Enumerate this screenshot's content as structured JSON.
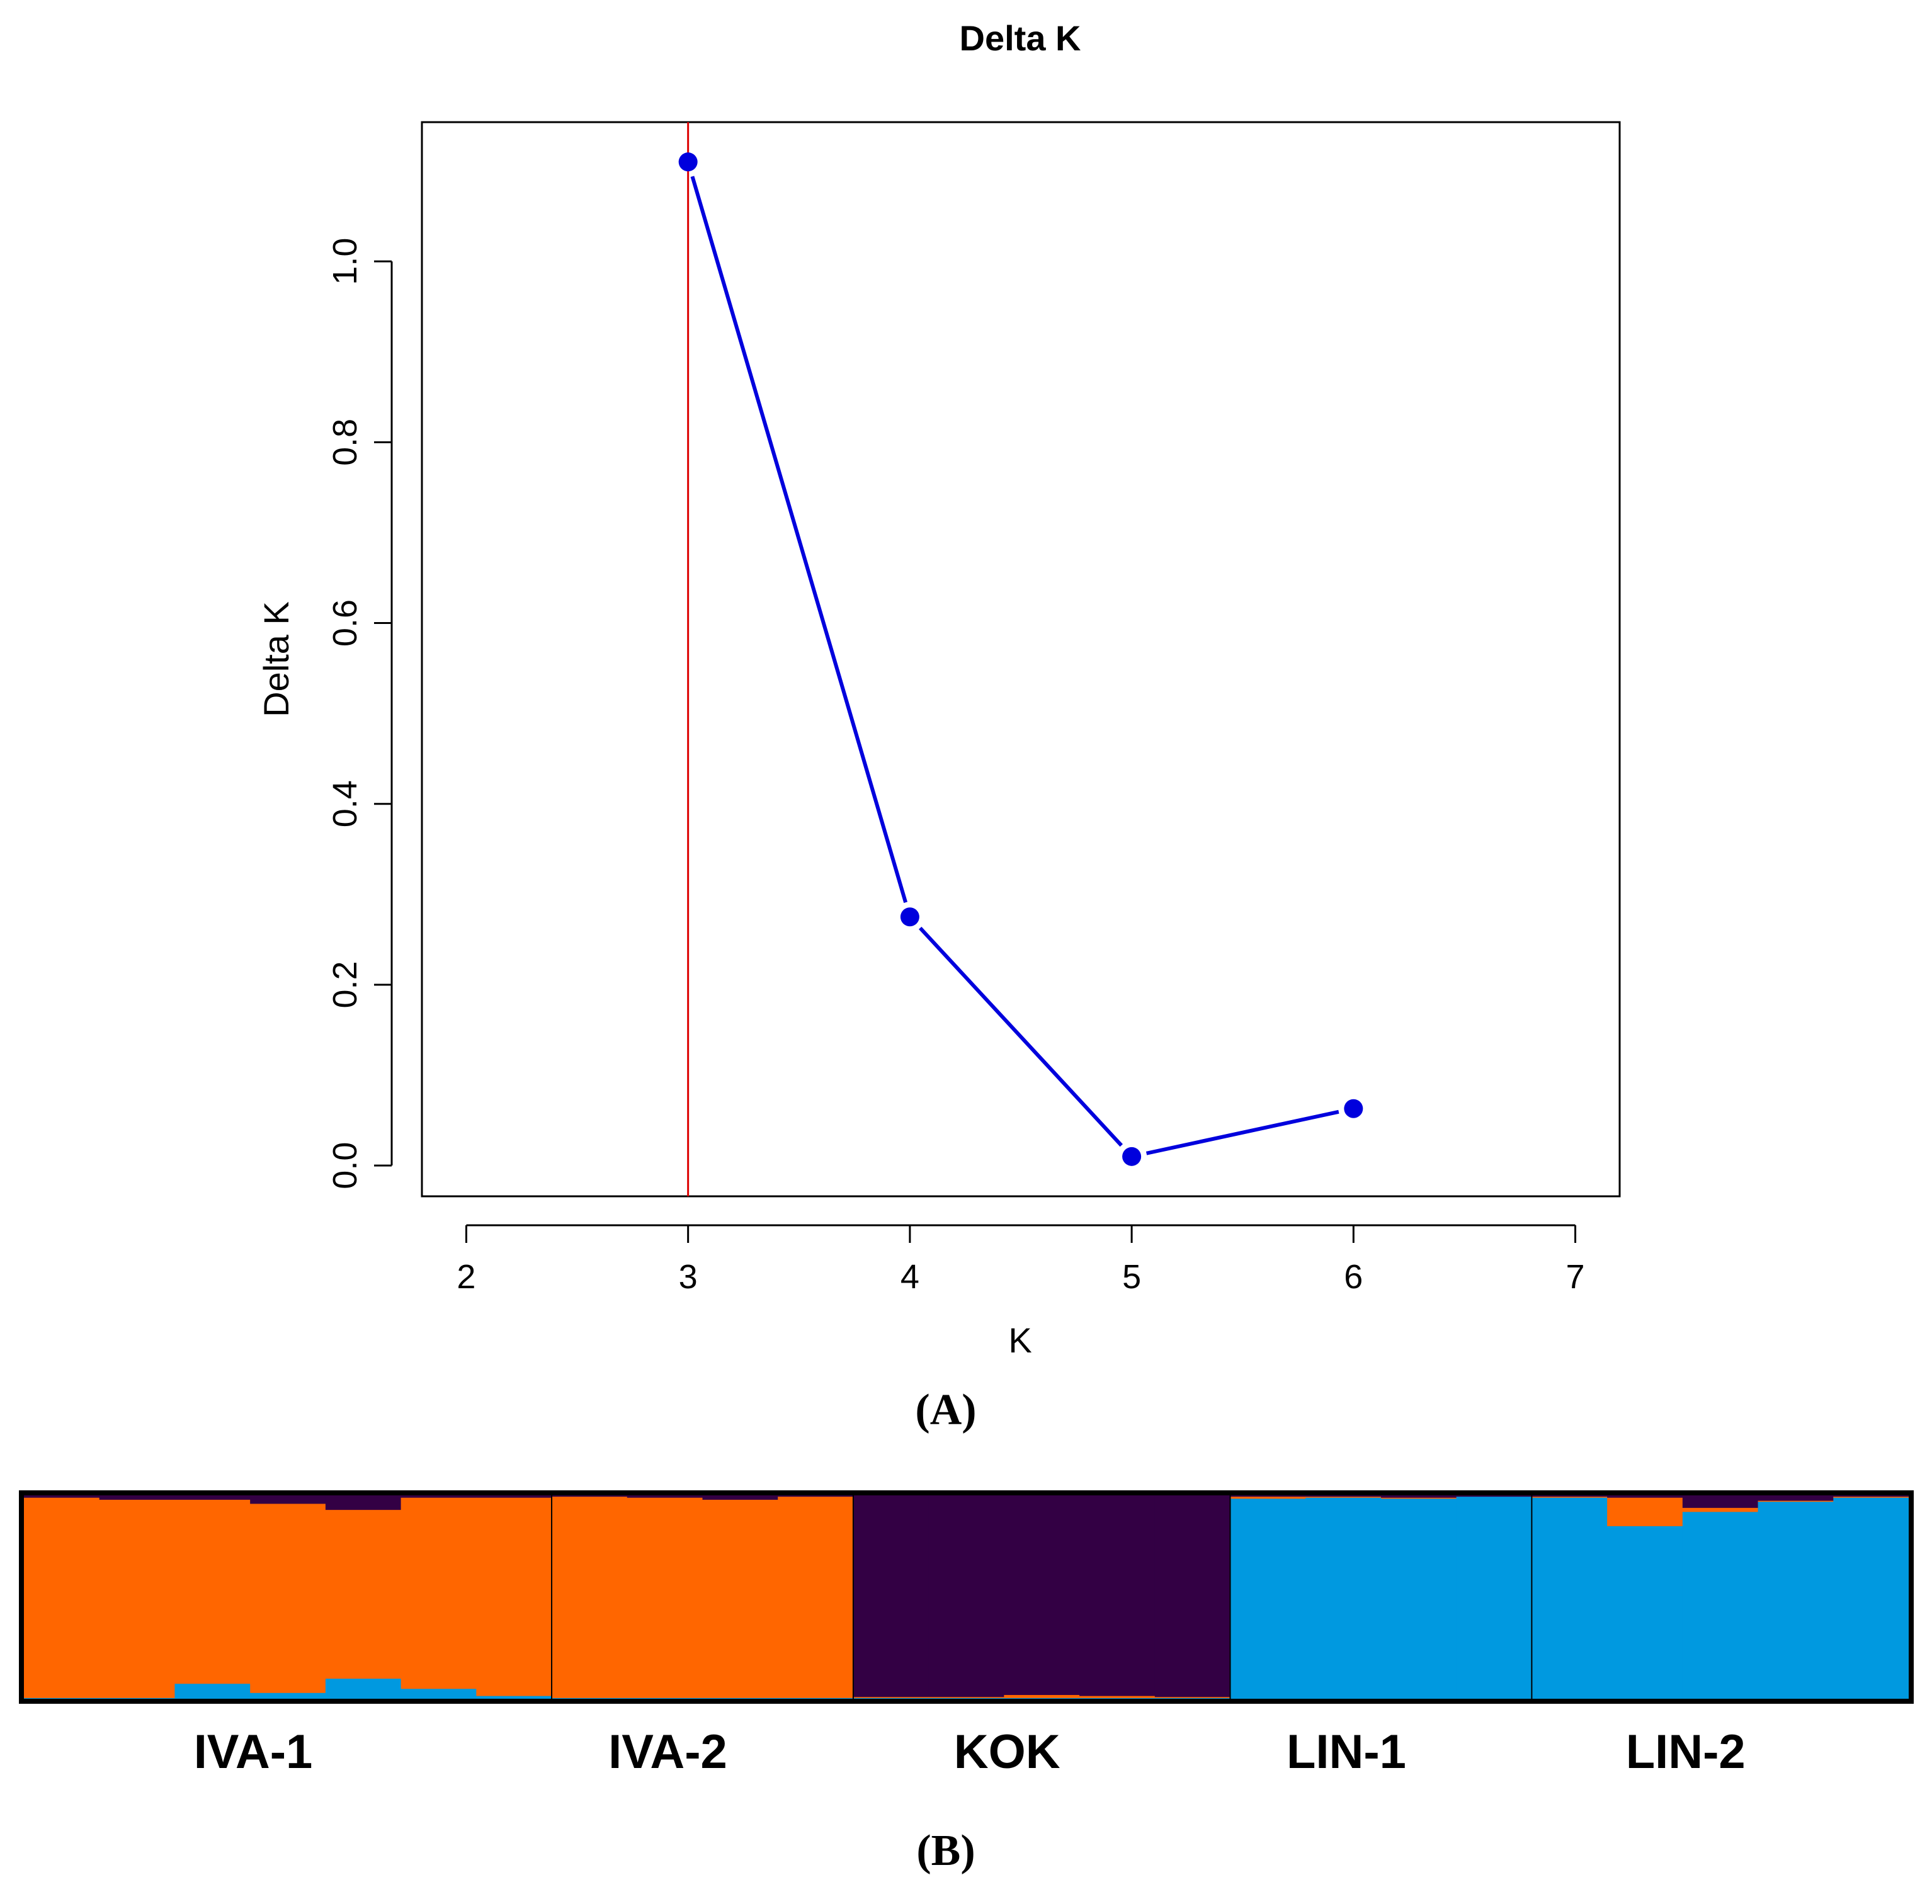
{
  "chart_data": [
    {
      "type": "line",
      "title": "Delta K",
      "xlabel": "K",
      "ylabel": "Delta K",
      "x": [
        3,
        4,
        5,
        6
      ],
      "values": [
        1.11,
        0.275,
        0.01,
        0.063
      ],
      "xlim": [
        1.8,
        7.2
      ],
      "ylim": [
        -0.034,
        1.154
      ],
      "xticks": [
        "2",
        "3",
        "4",
        "5",
        "6",
        "7"
      ],
      "yticks": [
        "0.0",
        "0.2",
        "0.4",
        "0.6",
        "0.8",
        "1.0"
      ],
      "highlight_k": 3,
      "line_color": "#0000dd",
      "highlight_color": "#dd0000",
      "panel_label": "(A)"
    },
    {
      "type": "bar",
      "stacked": true,
      "title": "",
      "populations": [
        "IVA-1",
        "IVA-2",
        "KOK",
        "LIN-1",
        "LIN-2"
      ],
      "cluster_colors": {
        "orange": "#ff6600",
        "purple": "#330044",
        "blue": "#0099e0"
      },
      "cluster_order": [
        "blue",
        "orange",
        "purple"
      ],
      "individuals": [
        {
          "pop": "IVA-1",
          "blue": 0.005,
          "orange": 0.985,
          "purple": 0.01
        },
        {
          "pop": "IVA-1",
          "blue": 0.005,
          "orange": 0.975,
          "purple": 0.02
        },
        {
          "pop": "IVA-1",
          "blue": 0.075,
          "orange": 0.905,
          "purple": 0.02
        },
        {
          "pop": "IVA-1",
          "blue": 0.03,
          "orange": 0.93,
          "purple": 0.04
        },
        {
          "pop": "IVA-1",
          "blue": 0.1,
          "orange": 0.83,
          "purple": 0.07
        },
        {
          "pop": "IVA-1",
          "blue": 0.05,
          "orange": 0.94,
          "purple": 0.01
        },
        {
          "pop": "IVA-1",
          "blue": 0.015,
          "orange": 0.975,
          "purple": 0.01
        },
        {
          "pop": "IVA-2",
          "blue": 0.005,
          "orange": 0.99,
          "purple": 0.005
        },
        {
          "pop": "IVA-2",
          "blue": 0.005,
          "orange": 0.985,
          "purple": 0.01
        },
        {
          "pop": "IVA-2",
          "blue": 0.005,
          "orange": 0.975,
          "purple": 0.02
        },
        {
          "pop": "IVA-2",
          "blue": 0.005,
          "orange": 0.99,
          "purple": 0.005
        },
        {
          "pop": "KOK",
          "blue": 0.005,
          "orange": 0.005,
          "purple": 0.99
        },
        {
          "pop": "KOK",
          "blue": 0.005,
          "orange": 0.005,
          "purple": 0.99
        },
        {
          "pop": "KOK",
          "blue": 0.005,
          "orange": 0.015,
          "purple": 0.98
        },
        {
          "pop": "KOK",
          "blue": 0.005,
          "orange": 0.01,
          "purple": 0.985
        },
        {
          "pop": "KOK",
          "blue": 0.005,
          "orange": 0.005,
          "purple": 0.99
        },
        {
          "pop": "LIN-1",
          "blue": 0.985,
          "orange": 0.01,
          "purple": 0.005
        },
        {
          "pop": "LIN-1",
          "blue": 0.99,
          "orange": 0.005,
          "purple": 0.005
        },
        {
          "pop": "LIN-1",
          "blue": 0.985,
          "orange": 0.005,
          "purple": 0.01
        },
        {
          "pop": "LIN-1",
          "blue": 0.995,
          "orange": 0.0,
          "purple": 0.005
        },
        {
          "pop": "LIN-2",
          "blue": 0.99,
          "orange": 0.005,
          "purple": 0.005
        },
        {
          "pop": "LIN-2",
          "blue": 0.85,
          "orange": 0.14,
          "purple": 0.01
        },
        {
          "pop": "LIN-2",
          "blue": 0.92,
          "orange": 0.02,
          "purple": 0.06
        },
        {
          "pop": "LIN-2",
          "blue": 0.97,
          "orange": 0.005,
          "purple": 0.025
        },
        {
          "pop": "LIN-2",
          "blue": 0.99,
          "orange": 0.005,
          "purple": 0.005
        }
      ],
      "panel_label": "(B)"
    }
  ]
}
